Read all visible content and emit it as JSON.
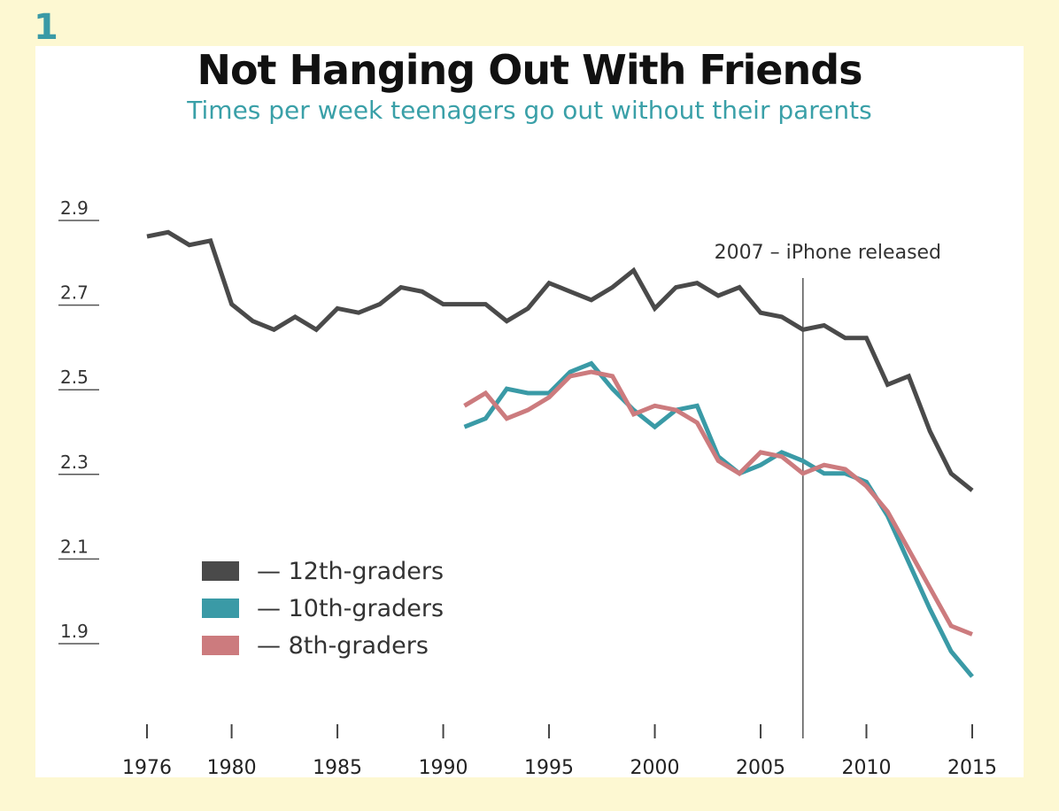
{
  "panel_number": "1",
  "chart_data": {
    "type": "line",
    "title": "Not Hanging Out With Friends",
    "subtitle": "Times per week teenagers go out without their parents",
    "xlabel": "",
    "ylabel": "",
    "xlim": [
      1976,
      2015
    ],
    "ylim": [
      1.9,
      2.9
    ],
    "y_ticks": [
      "2.9",
      "2.7",
      "2.5",
      "2.3",
      "2.1",
      "1.9"
    ],
    "x_ticks": [
      "1976",
      "1980",
      "1985",
      "1990",
      "1995",
      "2000",
      "2005",
      "2010",
      "2015"
    ],
    "grid": false,
    "legend_position": "bottom-left",
    "annotation": {
      "x": 2007,
      "text": "2007 – iPhone released"
    },
    "series": [
      {
        "name": "12th-graders",
        "legend_label": "— 12th-graders",
        "color": "#4a4a4a",
        "x": [
          1976,
          1977,
          1978,
          1979,
          1980,
          1981,
          1982,
          1983,
          1984,
          1985,
          1986,
          1987,
          1988,
          1989,
          1990,
          1991,
          1992,
          1993,
          1994,
          1995,
          1996,
          1997,
          1998,
          1999,
          2000,
          2001,
          2002,
          2003,
          2004,
          2005,
          2006,
          2007,
          2008,
          2009,
          2010,
          2011,
          2012,
          2013,
          2014,
          2015
        ],
        "values": [
          2.86,
          2.87,
          2.84,
          2.85,
          2.7,
          2.66,
          2.64,
          2.67,
          2.64,
          2.69,
          2.68,
          2.7,
          2.74,
          2.73,
          2.7,
          2.7,
          2.7,
          2.66,
          2.69,
          2.75,
          2.73,
          2.71,
          2.74,
          2.78,
          2.69,
          2.74,
          2.75,
          2.72,
          2.74,
          2.68,
          2.67,
          2.64,
          2.65,
          2.62,
          2.62,
          2.51,
          2.53,
          2.4,
          2.3,
          2.26
        ]
      },
      {
        "name": "10th-graders",
        "legend_label": "— 10th-graders",
        "color": "#3a9aa6",
        "x": [
          1991,
          1992,
          1993,
          1994,
          1995,
          1996,
          1997,
          1998,
          1999,
          2000,
          2001,
          2002,
          2003,
          2004,
          2005,
          2006,
          2007,
          2008,
          2009,
          2010,
          2011,
          2012,
          2013,
          2014,
          2015
        ],
        "values": [
          2.41,
          2.43,
          2.5,
          2.49,
          2.49,
          2.54,
          2.56,
          2.5,
          2.45,
          2.41,
          2.45,
          2.46,
          2.34,
          2.3,
          2.32,
          2.35,
          2.33,
          2.3,
          2.3,
          2.28,
          2.2,
          2.09,
          1.98,
          1.88,
          1.82
        ]
      },
      {
        "name": "8th-graders",
        "legend_label": "— 8th-graders",
        "color": "#cc7b7e",
        "x": [
          1991,
          1992,
          1993,
          1994,
          1995,
          1996,
          1997,
          1998,
          1999,
          2000,
          2001,
          2002,
          2003,
          2004,
          2005,
          2006,
          2007,
          2008,
          2009,
          2010,
          2011,
          2012,
          2013,
          2014,
          2015
        ],
        "values": [
          2.46,
          2.49,
          2.43,
          2.45,
          2.48,
          2.53,
          2.54,
          2.53,
          2.44,
          2.46,
          2.45,
          2.42,
          2.33,
          2.3,
          2.35,
          2.34,
          2.3,
          2.32,
          2.31,
          2.27,
          2.21,
          2.12,
          2.03,
          1.94,
          1.92
        ]
      }
    ]
  }
}
